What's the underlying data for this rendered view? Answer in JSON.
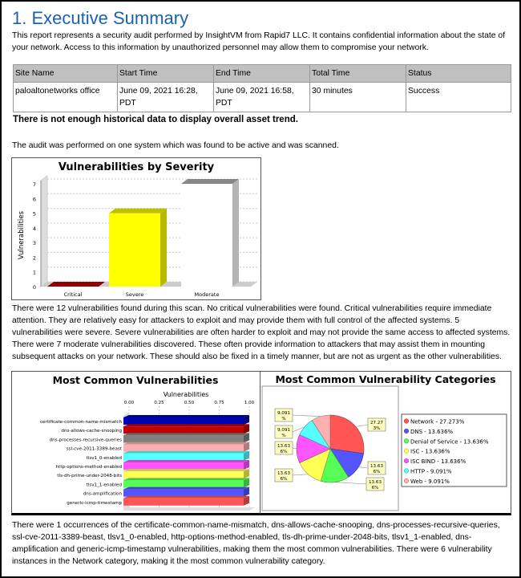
{
  "title": "1. Executive Summary",
  "intro": "This report represents a security audit performed by InsightVM from Rapid7 LLC. It contains confidential information about the state of your network. Access to this information by unauthorized personnel may allow them to compromise your network.",
  "scan_table": {
    "headers": [
      "Site Name",
      "Start Time",
      "End Time",
      "Total Time",
      "Status"
    ],
    "rows": [
      [
        "paloaltonetworks office",
        "June 09, 2021 16:28, PDT",
        "June 09, 2021 16:58, PDT",
        "30 minutes",
        "Success"
      ]
    ]
  },
  "trend_note": "There is not enough historical data to display overall asset trend.",
  "audit_note": "The audit was performed on one system which was found to be active and was scanned.",
  "severity_summary": "There were 12 vulnerabilities found during this scan. No critical vulnerabilities were found. Critical vulnerabilities require immediate attention. They are relatively easy for attackers to exploit and may provide them with full control of the affected systems. 5 vulnerabilities were severe. Severe vulnerabilities are often harder to exploit and may not provide the same access to affected systems. There were 7 moderate vulnerabilities discovered. These often provide information to attackers that may assist them in mounting subsequent attacks on your network. These should also be fixed in a timely manner, but are not as urgent as the other vulnerabilities.",
  "common_summary": "There were 1 occurrences of the certificate-common-name-mismatch, dns-allows-cache-snooping, dns-processes-recursive-queries, ssl-cve-2011-3389-beast, tlsv1_0-enabled, http-options-method-enabled, tls-dh-prime-under-2048-bits, tlsv1_1-enabled, dns-amplification and generic-icmp-timestamp vulnerabilities, making them the most common vulnerabilities. There were 6 vulnerability instances in the Network category, making it the most common vulnerability category.",
  "chart_data": [
    {
      "type": "bar",
      "title": "Vulnerabilities by Severity",
      "ylabel": "Vulnerabilities",
      "xlabel": "",
      "categories": [
        "Critical",
        "Severe",
        "Moderate"
      ],
      "values": [
        0,
        5,
        7
      ],
      "colors": [
        "#c00000",
        "#ffff00",
        "#ffffff"
      ],
      "ylim": [
        0,
        7
      ],
      "yticks": [
        "0",
        "1",
        "2",
        "3",
        "4",
        "5",
        "6",
        "7"
      ],
      "grid": true,
      "style": "3d"
    },
    {
      "type": "bar",
      "orientation": "horizontal",
      "title": "Most Common Vulnerabilities",
      "xlabel": "Vulnerabilities",
      "categories": [
        "certificate-common-name-mismatch",
        "dns-allows-cache-snooping",
        "dns-processes-recursive-queries",
        "ssl-cve-2011-3389-beast",
        "tlsv1_0-enabled",
        "http-options-method-enabled",
        "tls-dh-prime-under-2048-bits",
        "tlsv1_1-enabled",
        "dns-amplification",
        "generic-icmp-timestamp"
      ],
      "values": [
        1,
        1,
        1,
        1,
        1,
        1,
        1,
        1,
        1,
        1
      ],
      "colors": [
        "#0000b4",
        "#c00000",
        "#808080",
        "#ffafaf",
        "#55ffff",
        "#ff55ff",
        "#ffff55",
        "#55ff55",
        "#5555ff",
        "#ff5555"
      ],
      "xlim": [
        0,
        1
      ],
      "xticks": [
        "0.00",
        "0.25",
        "0.50",
        "0.75",
        "1.00"
      ],
      "style": "3d"
    },
    {
      "type": "pie",
      "title": "Most Common Vulnerability Categories",
      "legend_position": "right",
      "slices": [
        {
          "label": "Network",
          "value": 27.273,
          "legend": "Network - 27.273%",
          "data_label": "27.273%",
          "color": "#ff5555"
        },
        {
          "label": "DNS",
          "value": 13.636,
          "legend": "DNS - 13.636%",
          "data_label": "13.636%",
          "color": "#5555ff"
        },
        {
          "label": "Denial of Service",
          "value": 13.636,
          "legend": "Denial of Service - 13.636%",
          "data_label": "13.636%",
          "color": "#55ff55"
        },
        {
          "label": "ISC",
          "value": 13.636,
          "legend": "ISC - 13.636%",
          "data_label": "13.636%",
          "color": "#ffff55"
        },
        {
          "label": "ISC BIND",
          "value": 13.636,
          "legend": "ISC BIND - 13.636%",
          "data_label": "13.636%",
          "color": "#ff55ff"
        },
        {
          "label": "HTTP",
          "value": 9.091,
          "legend": "HTTP - 9.091%",
          "data_label": "9.091%",
          "color": "#55ffff"
        },
        {
          "label": "Web",
          "value": 9.091,
          "legend": "Web - 9.091%",
          "data_label": "9.091%",
          "color": "#ffafaf"
        }
      ]
    }
  ]
}
